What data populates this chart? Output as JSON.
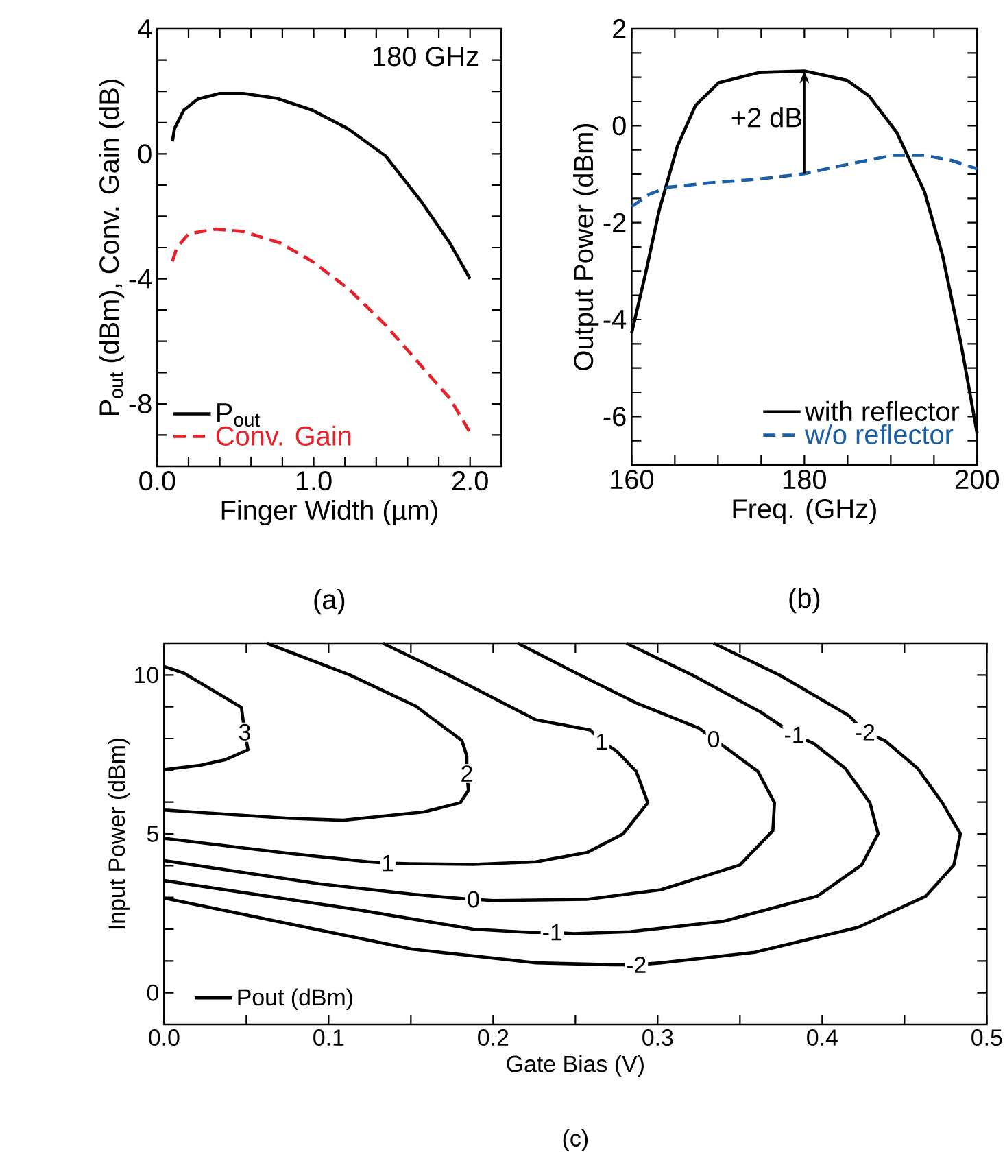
{
  "chart_data": [
    {
      "type": "line",
      "xlabel": "Finger Width (µm)",
      "ylabel": "P$_{out}$ (dBm), Conv. Gain (dB)",
      "xlim": [
        0,
        2.2
      ],
      "ylim": [
        -10,
        4
      ],
      "xticks": [
        {
          "value": 0,
          "label": "0.0"
        },
        {
          "value": 0.2,
          "label": null
        },
        {
          "value": 0.4,
          "label": null
        },
        {
          "value": 0.6,
          "label": null
        },
        {
          "value": 0.8,
          "label": null
        },
        {
          "value": 1,
          "label": "1.0"
        },
        {
          "value": 1.2,
          "label": null
        },
        {
          "value": 1.4,
          "label": null
        },
        {
          "value": 1.6,
          "label": null
        },
        {
          "value": 1.8,
          "label": null
        },
        {
          "value": 2,
          "label": "2.0"
        }
      ],
      "yticks": [
        {
          "value": -9,
          "label": null
        },
        -8,
        {
          "value": -7,
          "label": null
        },
        {
          "value": -6,
          "label": null
        },
        {
          "value": -5,
          "label": null
        },
        -4,
        {
          "value": -3,
          "label": null
        },
        {
          "value": -2,
          "label": null
        },
        {
          "value": -1,
          "label": null
        },
        0,
        {
          "value": 1,
          "label": null
        },
        {
          "value": 2,
          "label": null
        },
        {
          "value": 3,
          "label": null
        },
        4
      ],
      "legend": "bottom left",
      "series": [
        {
          "name": "P$_{out}$",
          "color": "#000000",
          "line_style": "solid",
          "x": [
            0.097,
            0.11,
            0.17,
            0.26,
            0.4,
            0.55,
            0.76,
            0.99,
            1.22,
            1.46,
            1.69,
            1.87,
            2.0
          ],
          "values": [
            0.4,
            0.8,
            1.4,
            1.75,
            1.93,
            1.93,
            1.78,
            1.4,
            0.8,
            -0.07,
            -1.54,
            -2.85,
            -4.0
          ]
        },
        {
          "name": "Conv. Gain",
          "color": "#e8202a",
          "line_style": "dashed",
          "x": [
            0.097,
            0.126,
            0.2,
            0.375,
            0.55,
            0.785,
            0.99,
            1.22,
            1.46,
            1.69,
            1.87,
            2.0
          ],
          "values": [
            -3.44,
            -3.0,
            -2.56,
            -2.41,
            -2.49,
            -2.85,
            -3.44,
            -4.31,
            -5.48,
            -6.8,
            -7.82,
            -8.92
          ]
        }
      ],
      "annotations": [
        "180 GHz",
        "(a)"
      ]
    },
    {
      "type": "line",
      "xlabel": "Freq. (GHz)",
      "ylabel": "Output Power (dBm)",
      "xlim": [
        160,
        200
      ],
      "ylim": [
        -7,
        2
      ],
      "xticks": [
        160,
        {
          "value": 165,
          "label": null
        },
        {
          "value": 170,
          "label": null
        },
        {
          "value": 175,
          "label": null
        },
        180,
        {
          "value": 185,
          "label": null
        },
        {
          "value": 190,
          "label": null
        },
        {
          "value": 195,
          "label": null
        },
        200
      ],
      "yticks": [
        {
          "value": -6.5,
          "label": null
        },
        -6,
        {
          "value": -5.5,
          "label": null
        },
        {
          "value": -5,
          "label": null
        },
        {
          "value": -4.5,
          "label": null
        },
        -4,
        {
          "value": -3.5,
          "label": null
        },
        {
          "value": -3,
          "label": null
        },
        {
          "value": -2.5,
          "label": null
        },
        -2,
        {
          "value": -1.5,
          "label": null
        },
        {
          "value": -1,
          "label": null
        },
        {
          "value": -0.5,
          "label": null
        },
        0,
        {
          "value": 0.5,
          "label": null
        },
        {
          "value": 1,
          "label": null
        },
        {
          "value": 1.5,
          "label": null
        },
        2
      ],
      "legend": "bottom right",
      "series": [
        {
          "name": "with reflector",
          "color": "#000000",
          "line_style": "solid",
          "x": [
            160,
            161.6,
            163.2,
            165.3,
            167.4,
            170.1,
            174.8,
            180,
            184.9,
            187.5,
            190.7,
            193.9,
            196.0,
            198.1,
            200
          ],
          "values": [
            -4.28,
            -3.06,
            -1.74,
            -0.42,
            0.42,
            0.89,
            1.1,
            1.13,
            0.94,
            0.61,
            -0.14,
            -1.36,
            -2.68,
            -4.47,
            -6.35
          ]
        },
        {
          "name": "w/o reflector",
          "color": "#1a5fa8",
          "line_style": "dashed",
          "x": [
            160,
            162.1,
            164.2,
            169.0,
            174.8,
            180,
            184.9,
            190.2,
            193.9,
            197.1,
            200
          ],
          "values": [
            -1.67,
            -1.41,
            -1.27,
            -1.18,
            -1.1,
            -0.99,
            -0.8,
            -0.61,
            -0.61,
            -0.72,
            -0.89
          ]
        }
      ],
      "annotations": [
        {
          "text": "+2 dB",
          "x": 180,
          "y": 1.13
        },
        "(b)"
      ]
    },
    {
      "type": "line",
      "xlabel": "Gate Bias (V)",
      "ylabel": "Input Power (dBm)",
      "xlim": [
        0,
        0.5
      ],
      "ylim": [
        -1,
        11
      ],
      "xticks": [
        {
          "value": 0,
          "label": "0.0"
        },
        {
          "value": 0.05,
          "label": null
        },
        0.1,
        {
          "value": 0.15,
          "label": null
        },
        0.2,
        {
          "value": 0.25,
          "label": null
        },
        0.3,
        {
          "value": 0.35,
          "label": null
        },
        0.4,
        {
          "value": 0.45,
          "label": null
        },
        0.5
      ],
      "yticks": [
        0,
        {
          "value": 1,
          "label": null
        },
        {
          "value": 2,
          "label": null
        },
        {
          "value": 3,
          "label": null
        },
        {
          "value": 4,
          "label": null
        },
        5,
        {
          "value": 6,
          "label": null
        },
        {
          "value": 7,
          "label": null
        },
        {
          "value": 8,
          "label": null
        },
        {
          "value": 9,
          "label": null
        },
        10
      ],
      "legend": "bottom left",
      "series": [
        {
          "name": "Pout (dBm)",
          "color": "#000000",
          "line_style": "solid",
          "x": [
            0,
            0.012,
            0.047,
            0.049,
            0.051,
            0.037,
            0.022,
            0
          ],
          "values": [
            10.27,
            10.06,
            8.98,
            8.2,
            7.65,
            7.33,
            7.16,
            7.02
          ]
        },
        {
          "color": "#000000",
          "line_style": "solid",
          "x": [
            0.0625,
            0.113,
            0.153,
            0.181,
            0.184,
            0.184,
            0.185,
            0.18,
            0.158,
            0.109,
            0.075,
            0
          ],
          "values": [
            11,
            10.0,
            9.02,
            7.94,
            7.45,
            6.9,
            6.37,
            5.98,
            5.69,
            5.43,
            5.49,
            5.75
          ]
        },
        {
          "color": "#000000",
          "line_style": "solid",
          "x": [
            0.133,
            0.173,
            0.226,
            0.259,
            0.266,
            0.275,
            0.287,
            0.294,
            0.279,
            0.257,
            0.226,
            0.188,
            0.149,
            0.136,
            0.124,
            0.075,
            0
          ],
          "values": [
            11,
            10.0,
            8.59,
            8.27,
            7.9,
            7.61,
            6.96,
            5.98,
            5.0,
            4.41,
            4.12,
            4.04,
            4.06,
            4.08,
            4.12,
            4.39,
            4.86
          ]
        },
        {
          "color": "#000000",
          "line_style": "solid",
          "x": [
            0.215,
            0.249,
            0.287,
            0.325,
            0.334,
            0.343,
            0.361,
            0.371,
            0.37,
            0.35,
            0.302,
            0.257,
            0.2,
            0.188,
            0.177,
            0.151,
            0.094,
            0
          ],
          "values": [
            11,
            10.1,
            9.12,
            8.33,
            7.98,
            7.65,
            6.96,
            5.98,
            5.1,
            4.02,
            3.24,
            2.94,
            2.9,
            2.94,
            2.98,
            3.1,
            3.43,
            4.16
          ]
        },
        {
          "color": "#000000",
          "line_style": "solid",
          "x": [
            0.281,
            0.321,
            0.363,
            0.383,
            0.395,
            0.414,
            0.429,
            0.434,
            0.424,
            0.397,
            0.34,
            0.283,
            0.249,
            0.236,
            0.222,
            0.188,
            0.113,
            0
          ],
          "values": [
            11,
            10.0,
            8.82,
            8.12,
            7.84,
            7.06,
            5.98,
            5.0,
            4.02,
            3.04,
            2.25,
            1.92,
            1.86,
            1.9,
            1.9,
            2.0,
            2.65,
            3.53
          ]
        },
        {
          "color": "#000000",
          "line_style": "solid",
          "x": [
            0.334,
            0.374,
            0.416,
            0.426,
            0.438,
            0.458,
            0.473,
            0.484,
            0.48,
            0.463,
            0.422,
            0.359,
            0.302,
            0.287,
            0.272,
            0.226,
            0.151,
            0
          ],
          "values": [
            11,
            10.0,
            8.73,
            8.2,
            7.94,
            7.06,
            5.98,
            5.0,
            4.02,
            3.04,
            2.06,
            1.27,
            0.94,
            0.88,
            0.88,
            0.94,
            1.37,
            2.98
          ]
        }
      ],
      "annotations": [
        {
          "text": "3",
          "x": 0.049,
          "y": 8.2
        },
        {
          "text": "2",
          "x": 0.184,
          "y": 6.9
        },
        {
          "text": "1",
          "x": 0.266,
          "y": 7.9
        },
        {
          "text": "1",
          "x": 0.136,
          "y": 4.08
        },
        {
          "text": "0",
          "x": 0.334,
          "y": 7.98
        },
        {
          "text": "0",
          "x": 0.188,
          "y": 2.94
        },
        {
          "text": "-1",
          "x": 0.383,
          "y": 8.12
        },
        {
          "text": "-1",
          "x": 0.236,
          "y": 1.9
        },
        {
          "text": "-2",
          "x": 0.426,
          "y": 8.2
        },
        {
          "text": "-2",
          "x": 0.287,
          "y": 0.88
        },
        "(c)"
      ]
    }
  ]
}
